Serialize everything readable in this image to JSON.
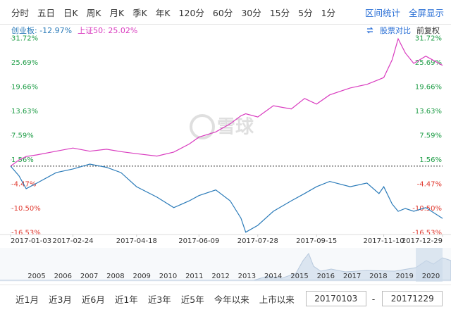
{
  "toolbar": {
    "tabs": [
      "分时",
      "五日",
      "日K",
      "周K",
      "月K",
      "季K",
      "年K",
      "120分",
      "60分",
      "30分",
      "15分",
      "5分",
      "1分"
    ],
    "tools": [
      "区间统计",
      "全屏显示"
    ]
  },
  "options": [
    "股票对比",
    "前复权"
  ],
  "watermark": "雪球",
  "chart_data": {
    "type": "line",
    "x": [
      "2017-01-03",
      "2017-01-10",
      "2017-01-16",
      "2017-01-25",
      "2017-02-10",
      "2017-02-24",
      "2017-03-10",
      "2017-03-24",
      "2017-04-05",
      "2017-04-18",
      "2017-05-05",
      "2017-05-19",
      "2017-06-01",
      "2017-06-09",
      "2017-06-23",
      "2017-07-05",
      "2017-07-14",
      "2017-07-18",
      "2017-07-28",
      "2017-08-10",
      "2017-08-25",
      "2017-09-05",
      "2017-09-15",
      "2017-09-26",
      "2017-10-13",
      "2017-10-27",
      "2017-11-06",
      "2017-11-10",
      "2017-11-17",
      "2017-11-22",
      "2017-11-28",
      "2017-12-05",
      "2017-12-15",
      "2017-12-29"
    ],
    "series": [
      {
        "name": "创业板: -12.97%",
        "color": "#2b7bb9",
        "values": [
          0,
          -2.4,
          -5.6,
          -4.2,
          -1.6,
          -0.7,
          0.5,
          -0.3,
          -1.6,
          -5.1,
          -7.7,
          -10.3,
          -8.6,
          -7.3,
          -5.9,
          -8.6,
          -12.9,
          -16.4,
          -14.7,
          -11.2,
          -8.6,
          -6.8,
          -5.1,
          -3.8,
          -5.1,
          -4.2,
          -6.8,
          -5.1,
          -9.4,
          -11.2,
          -10.5,
          -11.2,
          -10.3,
          -12.97
        ]
      },
      {
        "name": "上证50: 25.02%",
        "color": "#d93bbf",
        "values": [
          0,
          1.5,
          2.4,
          2.8,
          3.7,
          4.5,
          3.7,
          4.2,
          3.6,
          3.1,
          2.5,
          3.5,
          5.5,
          7.2,
          8.5,
          10.5,
          12.5,
          13.0,
          12.2,
          15.0,
          14.2,
          16.8,
          15.4,
          17.7,
          19.4,
          20.3,
          21.5,
          22.0,
          26.4,
          31.6,
          28.1,
          25.5,
          27.3,
          25.02
        ]
      }
    ],
    "xticks": [
      "2017-01-03",
      "2017-02-24",
      "2017-04-18",
      "2017-06-09",
      "2017-07-28",
      "2017-09-15",
      "2017-11-10",
      "2017-12-29"
    ],
    "ylim": [
      -16.8,
      32.5
    ],
    "yticks": [
      {
        "value": 31.72,
        "label": "31.72%"
      },
      {
        "value": 25.69,
        "label": "25.69%"
      },
      {
        "value": 19.66,
        "label": "19.66%"
      },
      {
        "value": 13.63,
        "label": "13.63%"
      },
      {
        "value": 7.59,
        "label": "7.59%"
      },
      {
        "value": 1.56,
        "label": "1.56%"
      },
      {
        "value": -4.47,
        "label": "-4.47%"
      },
      {
        "value": -10.5,
        "label": "-10.50%"
      },
      {
        "value": -16.53,
        "label": "-16.53%"
      }
    ],
    "tick_colors": {
      "positive": "#1f9d47",
      "negative": "#e0392f"
    }
  },
  "navigator": {
    "years": [
      "2005",
      "2006",
      "2007",
      "2008",
      "2009",
      "2010",
      "2011",
      "2012",
      "2013",
      "2014",
      "2015",
      "2016",
      "2017",
      "2018",
      "2019",
      "2020"
    ]
  },
  "bottom": {
    "ranges": [
      "近1月",
      "近3月",
      "近6月",
      "近1年",
      "近3年",
      "近5年",
      "今年以来",
      "上市以来"
    ],
    "start": "20170103",
    "separator": "-",
    "end": "20171229"
  }
}
